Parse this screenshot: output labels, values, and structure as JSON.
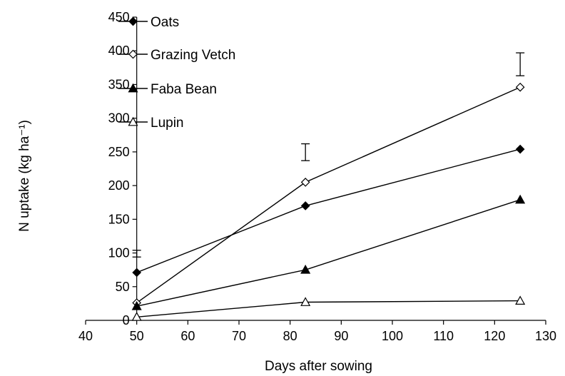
{
  "chart_data": {
    "type": "line",
    "xlabel": "Days after sowing",
    "ylabel": "N uptake (kg ha⁻¹)",
    "xlim": [
      40,
      130
    ],
    "ylim": [
      0,
      450
    ],
    "xticks": [
      40,
      50,
      60,
      70,
      80,
      90,
      100,
      110,
      120,
      130
    ],
    "yticks": [
      0,
      50,
      100,
      150,
      200,
      250,
      300,
      350,
      400,
      450
    ],
    "grid": false,
    "legend_position": "top-left",
    "series": [
      {
        "name": "Oats",
        "marker": "filled-diamond",
        "x": [
          50,
          83,
          125
        ],
        "y": [
          71,
          170,
          254
        ]
      },
      {
        "name": "Grazing Vetch",
        "marker": "open-diamond",
        "x": [
          50,
          83,
          125
        ],
        "y": [
          26,
          205,
          346
        ]
      },
      {
        "name": "Faba Bean",
        "marker": "filled-triangle",
        "x": [
          50,
          83,
          125
        ],
        "y": [
          21,
          75,
          179
        ]
      },
      {
        "name": "Lupin",
        "marker": "open-triangle",
        "x": [
          50,
          83,
          125
        ],
        "y": [
          5,
          27,
          29
        ]
      }
    ],
    "error_bars": [
      {
        "x": 50,
        "low": 94,
        "high": 104
      },
      {
        "x": 83,
        "low": 237,
        "high": 262
      },
      {
        "x": 125,
        "low": 363,
        "high": 397
      }
    ]
  }
}
